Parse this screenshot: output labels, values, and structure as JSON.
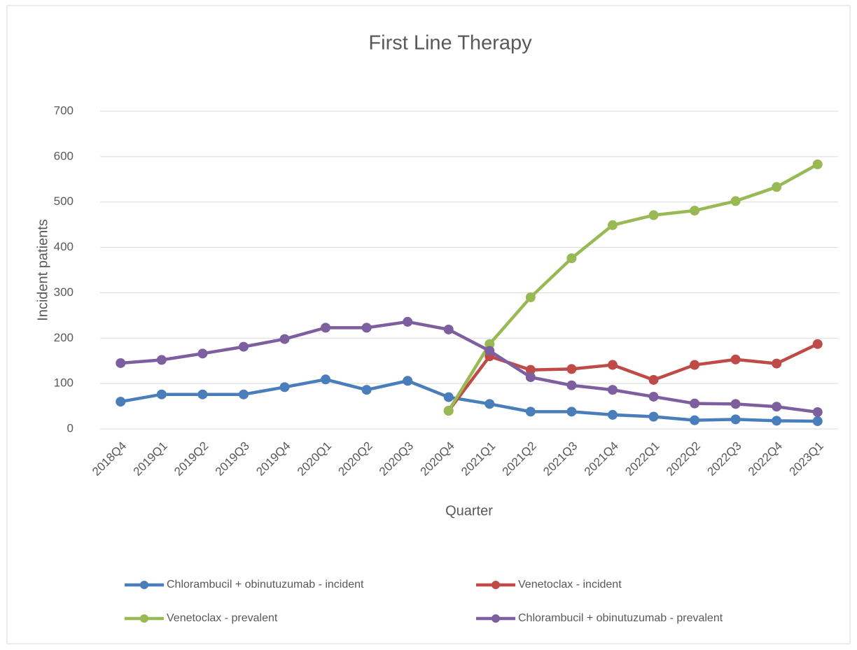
{
  "chart_data": {
    "type": "line",
    "title": "First Line Therapy",
    "x_label": "Quarter",
    "y_label": "Incident patients",
    "categories": [
      "2018Q4",
      "2019Q1",
      "2019Q2",
      "2019Q3",
      "2019Q4",
      "2020Q1",
      "2020Q2",
      "2020Q3",
      "2020Q4",
      "2021Q1",
      "2021Q2",
      "2021Q3",
      "2021Q4",
      "2022Q1",
      "2022Q2",
      "2022Q3",
      "2022Q4",
      "2023Q1"
    ],
    "series": [
      {
        "name": "Chlorambucil + obinutuzumab - incident",
        "color": "#4a7ebb",
        "values": [
          60,
          76,
          76,
          76,
          92,
          109,
          86,
          106,
          70,
          55,
          38,
          38,
          31,
          27,
          19,
          21,
          18,
          17
        ]
      },
      {
        "name": "Venetoclax - incident",
        "color": "#be4b48",
        "values": [
          null,
          null,
          null,
          null,
          null,
          null,
          null,
          null,
          40,
          160,
          130,
          132,
          141,
          108,
          141,
          153,
          144,
          187
        ]
      },
      {
        "name": "Venetoclax - prevalent",
        "color": "#98b954",
        "values": [
          null,
          null,
          null,
          null,
          null,
          null,
          null,
          null,
          40,
          187,
          290,
          376,
          449,
          471,
          481,
          502,
          533,
          583
        ]
      },
      {
        "name": "Chlorambucil + obinutuzumab - prevalent",
        "color": "#7d5fa0",
        "values": [
          145,
          152,
          166,
          181,
          198,
          223,
          223,
          236,
          219,
          172,
          114,
          96,
          86,
          71,
          56,
          55,
          49,
          37
        ]
      }
    ],
    "ylim": [
      0,
      700
    ],
    "yticks": [
      0,
      100,
      200,
      300,
      400,
      500,
      600,
      700
    ],
    "grid": true,
    "legend": "bottom"
  }
}
